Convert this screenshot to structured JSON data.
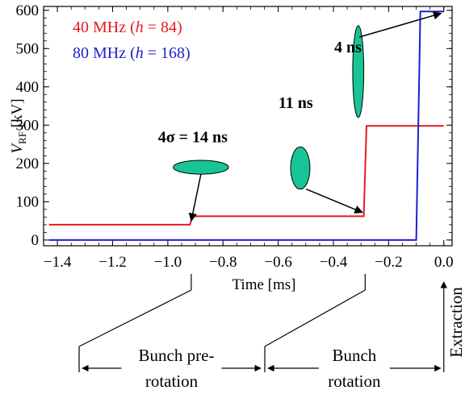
{
  "chart_data": {
    "type": "line",
    "xlabel": "Time [ms]",
    "ylabel_main": "V",
    "ylabel_sub": "RF",
    "ylabel_unit": " [kV]",
    "xlim": [
      -1.45,
      0.03
    ],
    "ylim": [
      -15,
      610
    ],
    "xticks": [
      -1.4,
      -1.2,
      -1.0,
      -0.8,
      -0.6,
      -0.4,
      -0.2,
      0.0
    ],
    "xtick_labels": [
      "−1.4",
      "−1.2",
      "−1.0",
      "−0.8",
      "−0.6",
      "−0.4",
      "−0.2",
      "0.0"
    ],
    "yticks": [
      0,
      100,
      200,
      300,
      400,
      500,
      600
    ],
    "ytick_labels": [
      "0",
      "100",
      "200",
      "300",
      "400",
      "500",
      "600"
    ],
    "series": [
      {
        "name": "40 MHz",
        "h_label": "(h = 84)",
        "color": "#e8191e",
        "points": [
          [
            -1.43,
            40
          ],
          [
            -0.92,
            40
          ],
          [
            -0.91,
            62
          ],
          [
            -0.29,
            62
          ],
          [
            -0.28,
            298
          ],
          [
            0.0,
            298
          ]
        ]
      },
      {
        "name": "80 MHz",
        "h_label": "(h = 168)",
        "color": "#1e1ed2",
        "points": [
          [
            -1.43,
            0
          ],
          [
            -0.1,
            0
          ],
          [
            -0.085,
            597
          ],
          [
            0.0,
            597
          ]
        ]
      }
    ],
    "legend": {
      "placement": "top-left",
      "entries": [
        {
          "prefix": "40 MHz (",
          "italic": "h",
          "suffix": " = 84)",
          "color": "#e8191e"
        },
        {
          "prefix": "80 MHz (",
          "italic": "h",
          "suffix": " = 168)",
          "color": "#1e1ed2"
        }
      ]
    },
    "annotations": [
      {
        "text": "4σ = 14 ns",
        "x": -0.88,
        "y": 190,
        "ellipse_rx_ms": 0.1,
        "ellipse_ry_kv": 18,
        "arrow_to": [
          -0.915,
          50
        ]
      },
      {
        "text": "11 ns",
        "x": -0.52,
        "y": 188,
        "ellipse_rx_ms": 0.035,
        "ellipse_ry_kv": 55,
        "arrow_to": [
          -0.295,
          72
        ]
      },
      {
        "text": "4 ns",
        "x": -0.31,
        "y": 440,
        "ellipse_rx_ms": 0.02,
        "ellipse_ry_kv": 120,
        "arrow_to": [
          -0.01,
          592
        ]
      }
    ],
    "phase_markers": [
      {
        "x": -0.915
      },
      {
        "x": -0.285
      },
      {
        "x": 0.0
      }
    ],
    "phases": [
      {
        "line1": "Bunch pre-",
        "line2": "rotation"
      },
      {
        "line1": "Bunch",
        "line2": "rotation"
      },
      {
        "line1": "Extraction"
      }
    ],
    "bunch_color": "#17c495"
  }
}
